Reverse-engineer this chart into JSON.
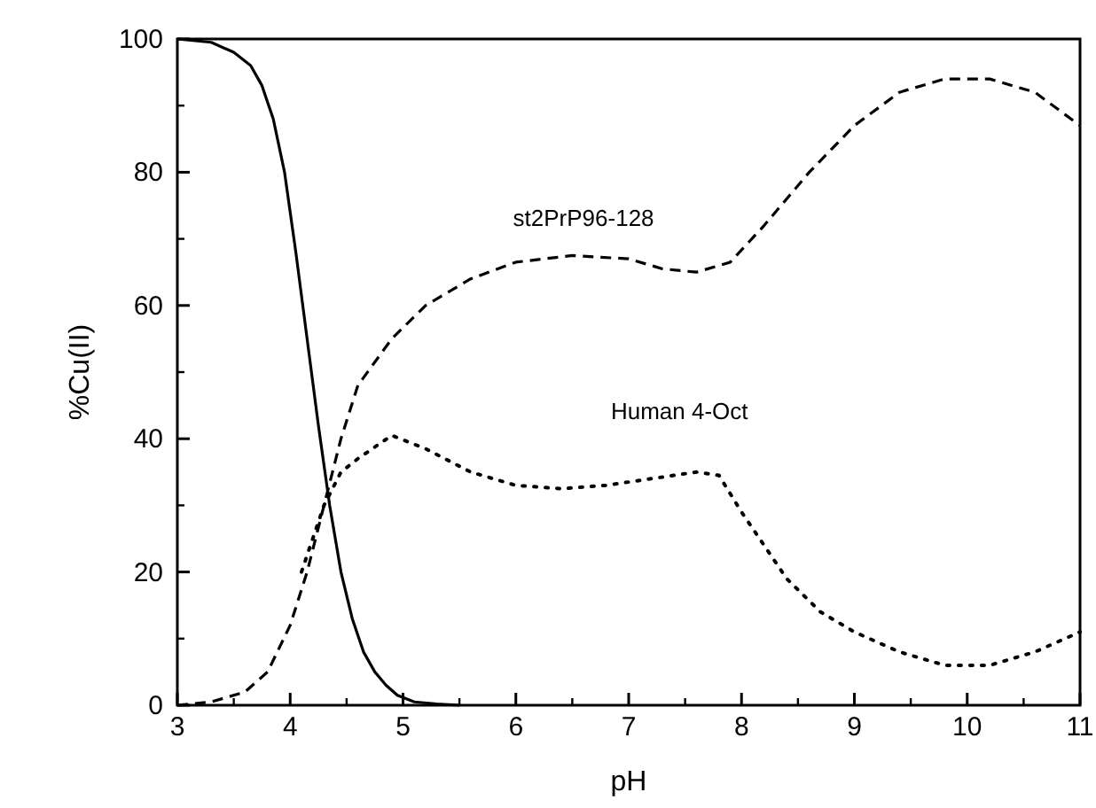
{
  "chart_data": {
    "type": "line",
    "xlabel": "pH",
    "ylabel": "%Cu(II)",
    "xlim": [
      3,
      11
    ],
    "xticks": [
      3,
      4,
      5,
      6,
      7,
      8,
      9,
      10,
      11
    ],
    "ylim": [
      0,
      100
    ],
    "yticks": [
      0,
      20,
      40,
      60,
      80,
      100
    ],
    "grid": false,
    "marker": "none",
    "series": [
      {
        "color": "#000000",
        "line_style": "solid",
        "x": [
          3.0,
          3.3,
          3.5,
          3.65,
          3.75,
          3.85,
          3.95,
          4.05,
          4.15,
          4.25,
          4.35,
          4.45,
          4.55,
          4.65,
          4.75,
          4.85,
          4.95,
          5.1,
          5.3,
          5.5
        ],
        "values": [
          100,
          99.5,
          98,
          96,
          93,
          88,
          80,
          68,
          55,
          42,
          30,
          20,
          13,
          8,
          5,
          3,
          1.5,
          0.5,
          0.2,
          0
        ]
      },
      {
        "name": "st2PrP96-128",
        "color": "#000000",
        "line_style": "dashed",
        "x": [
          3.0,
          3.3,
          3.6,
          3.8,
          4.0,
          4.15,
          4.3,
          4.45,
          4.6,
          4.9,
          5.2,
          5.6,
          6.0,
          6.5,
          7.0,
          7.3,
          7.6,
          7.9,
          8.2,
          8.6,
          9.0,
          9.4,
          9.8,
          10.2,
          10.6,
          11.0
        ],
        "values": [
          0,
          0.5,
          2,
          5,
          12,
          20,
          30,
          40,
          48,
          55,
          60,
          64,
          66.5,
          67.5,
          67,
          65.5,
          65,
          66.5,
          72,
          80,
          87,
          92,
          94,
          94,
          92,
          87
        ]
      },
      {
        "name": "Human 4-Oct",
        "color": "#000000",
        "line_style": "dotted",
        "x": [
          4.1,
          4.3,
          4.45,
          4.6,
          4.9,
          5.2,
          5.6,
          6.0,
          6.4,
          6.8,
          7.2,
          7.6,
          7.8,
          8.0,
          8.2,
          8.4,
          8.7,
          9.0,
          9.4,
          9.8,
          10.2,
          10.6,
          11.0
        ],
        "values": [
          20,
          30,
          35,
          37,
          40.5,
          38.5,
          35,
          33,
          32.5,
          33,
          34,
          35,
          34.5,
          29,
          24,
          19,
          14,
          11,
          8,
          6,
          6,
          8,
          11
        ]
      }
    ]
  }
}
